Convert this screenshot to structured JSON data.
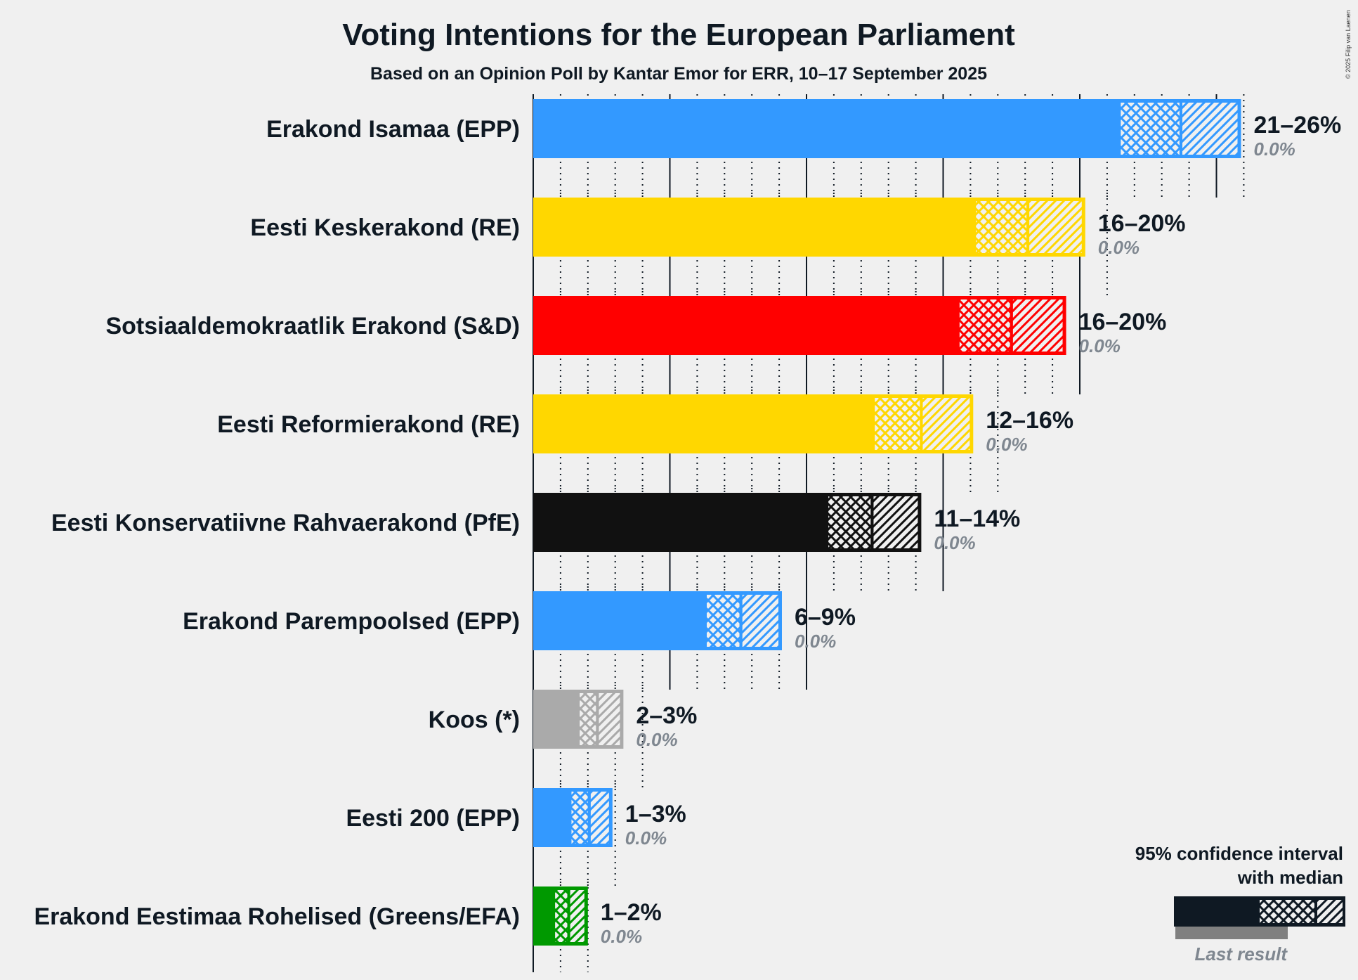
{
  "chart_data": {
    "type": "bar",
    "title": "Voting Intentions for the European Parliament",
    "subtitle": "Based on an Opinion Poll by Kantar Emor for ERR, 10–17 September 2025",
    "credit": "© 2025 Filip van Laenen",
    "xlabel": "",
    "ylabel": "",
    "xlim": [
      0,
      26
    ],
    "grid": {
      "major_every": 5,
      "minor_every": 1
    },
    "legend": {
      "position": "bottom-right",
      "title_line1": "95% confidence interval",
      "title_line2": "with median",
      "last_result_label": "Last result"
    },
    "categories": [
      "Erakond Isamaa (EPP)",
      "Eesti Keskerakond (RE)",
      "Sotsiaaldemokraatlik Erakond (S&D)",
      "Eesti Reformierakond (RE)",
      "Eesti Konservatiivne Rahvaerakond (PfE)",
      "Erakond Parempoolsed (EPP)",
      "Koos (*)",
      "Eesti 200 (EPP)",
      "Erakond Eestimaa Rohelised (Greens/EFA)"
    ],
    "series": [
      {
        "name": "Erakond Isamaa (EPP)",
        "color": "#3399ff",
        "ci_low": 21.5,
        "median": 23.7,
        "ci_high": 25.9,
        "range_label": "21–26%",
        "last_result": 0.0,
        "last_label": "0.0%"
      },
      {
        "name": "Eesti Keskerakond (RE)",
        "color": "#ffd700",
        "ci_low": 16.2,
        "median": 18.1,
        "ci_high": 20.2,
        "range_label": "16–20%",
        "last_result": 0.0,
        "last_label": "0.0%"
      },
      {
        "name": "Sotsiaaldemokraatlik Erakond (S&D)",
        "color": "#ff0000",
        "ci_low": 15.6,
        "median": 17.5,
        "ci_high": 19.5,
        "range_label": "16–20%",
        "last_result": 0.0,
        "last_label": "0.0%"
      },
      {
        "name": "Eesti Reformierakond (RE)",
        "color": "#ffd700",
        "ci_low": 12.5,
        "median": 14.2,
        "ci_high": 16.1,
        "range_label": "12–16%",
        "last_result": 0.0,
        "last_label": "0.0%"
      },
      {
        "name": "Eesti Konservatiivne Rahvaerakond (PfE)",
        "color": "#111111",
        "ci_low": 10.8,
        "median": 12.4,
        "ci_high": 14.2,
        "range_label": "11–14%",
        "last_result": 0.0,
        "last_label": "0.0%"
      },
      {
        "name": "Erakond Parempoolsed (EPP)",
        "color": "#3399ff",
        "ci_low": 6.35,
        "median": 7.6,
        "ci_high": 9.1,
        "range_label": "6–9%",
        "last_result": 0.0,
        "last_label": "0.0%"
      },
      {
        "name": "Koos (*)",
        "color": "#aaaaaa",
        "ci_low": 1.7,
        "median": 2.35,
        "ci_high": 3.3,
        "range_label": "2–3%",
        "last_result": 0.0,
        "last_label": "0.0%"
      },
      {
        "name": "Eesti 200 (EPP)",
        "color": "#3399ff",
        "ci_low": 1.4,
        "median": 2.05,
        "ci_high": 2.9,
        "range_label": "1–3%",
        "last_result": 0.0,
        "last_label": "0.0%"
      },
      {
        "name": "Erakond Eestimaa Rohelised (Greens/EFA)",
        "color": "#009900",
        "ci_low": 0.8,
        "median": 1.3,
        "ci_high": 2.0,
        "range_label": "1–2%",
        "last_result": 0.0,
        "last_label": "0.0%"
      }
    ]
  }
}
